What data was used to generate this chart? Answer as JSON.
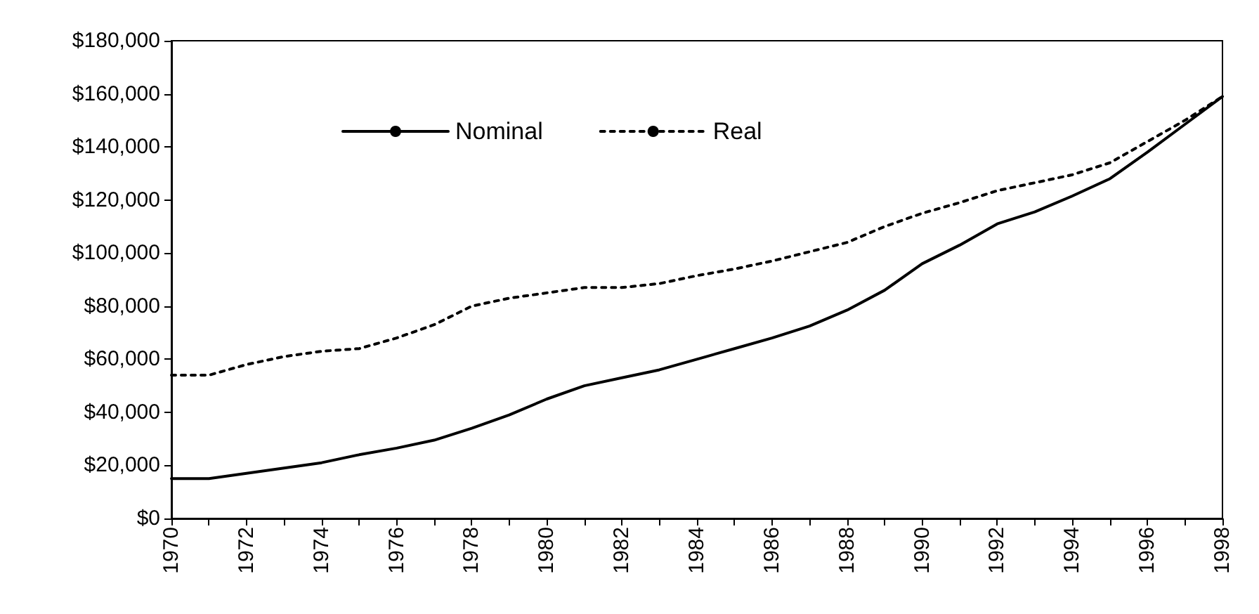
{
  "chart_data": {
    "type": "line",
    "categories": [
      "1970",
      null,
      "1972",
      null,
      "1974",
      null,
      "1976",
      null,
      "1978",
      null,
      "1980",
      null,
      "1982",
      null,
      "1984",
      null,
      "1986",
      null,
      "1988",
      null,
      "1990",
      null,
      "1992",
      null,
      "1994",
      null,
      "1996",
      null,
      "1998"
    ],
    "series": [
      {
        "name": "Nominal",
        "color": "#000000",
        "line_style": "solid",
        "values": [
          15000,
          15000,
          17000,
          19000,
          21000,
          24000,
          26500,
          29500,
          34000,
          39000,
          45000,
          50000,
          53000,
          56000,
          60000,
          64000,
          68000,
          72500,
          78500,
          86000,
          96000,
          103000,
          111000,
          115500,
          121500,
          128000,
          138000,
          148500,
          159000
        ]
      },
      {
        "name": "Real",
        "color": "#000000",
        "line_style": "dotted",
        "values": [
          54000,
          54000,
          58000,
          61000,
          63000,
          64000,
          68000,
          73000,
          80000,
          83000,
          85000,
          87000,
          87000,
          88500,
          91500,
          94000,
          97000,
          100500,
          104000,
          110000,
          115000,
          119000,
          123500,
          126500,
          129500,
          134000,
          142000,
          150000,
          159000
        ]
      }
    ],
    "ylim": [
      0,
      180000
    ],
    "yticks": [
      {
        "value": 0,
        "label": "$0"
      },
      {
        "value": 20000,
        "label": "$20,000"
      },
      {
        "value": 40000,
        "label": "$40,000"
      },
      {
        "value": 60000,
        "label": "$60,000"
      },
      {
        "value": 80000,
        "label": "$80,000"
      },
      {
        "value": 100000,
        "label": "$100,000"
      },
      {
        "value": 120000,
        "label": "$120,000"
      },
      {
        "value": 140000,
        "label": "$140,000"
      },
      {
        "value": 160000,
        "label": "$160,000"
      },
      {
        "value": 180000,
        "label": "$180,000"
      }
    ],
    "grid": false,
    "legend": "top",
    "marker": "none"
  }
}
